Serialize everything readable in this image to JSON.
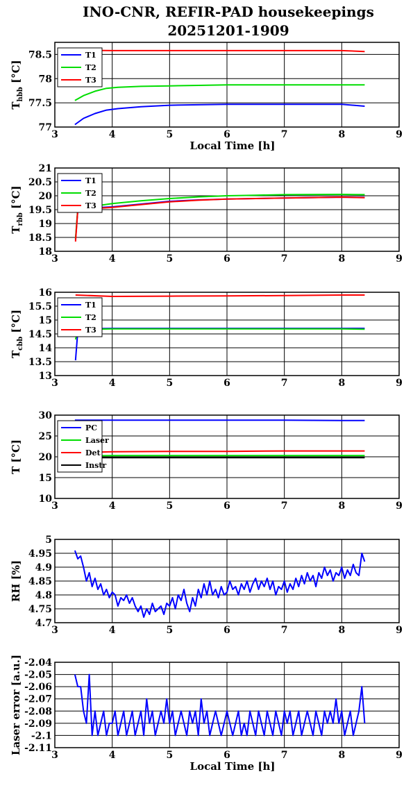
{
  "title_line1": "INO-CNR, REFIR-PAD housekeepings",
  "title_line2": "20251201-1909",
  "colors": {
    "blue": "#0000ff",
    "green": "#00dd00",
    "red": "#ff0000",
    "black": "#000000"
  },
  "chart_data": [
    {
      "type": "line",
      "ylabel_main": "T",
      "ylabel_sub": "hbb",
      "ylabel_unit": " [°C]",
      "xlabel": "Local Time [h]",
      "xlim": [
        3,
        9
      ],
      "ylim": [
        77,
        78.75
      ],
      "xticks": [
        3,
        4,
        5,
        6,
        7,
        8,
        9
      ],
      "yticks": [
        77,
        77.5,
        78,
        78.5
      ],
      "ytick_labels": [
        "77",
        "77.5",
        "78",
        "78.5"
      ],
      "legend": "top-left",
      "series": [
        {
          "name": "T1",
          "color": "blue",
          "x": [
            3.35,
            3.5,
            3.7,
            3.9,
            4.1,
            4.5,
            5.0,
            5.5,
            6.0,
            7.0,
            8.0,
            8.4
          ],
          "y": [
            77.05,
            77.18,
            77.28,
            77.35,
            77.38,
            77.42,
            77.45,
            77.46,
            77.47,
            77.47,
            77.47,
            77.43
          ]
        },
        {
          "name": "T2",
          "color": "green",
          "x": [
            3.35,
            3.5,
            3.7,
            3.9,
            4.1,
            4.5,
            5.0,
            5.5,
            6.0,
            7.0,
            8.0,
            8.4
          ],
          "y": [
            77.55,
            77.65,
            77.74,
            77.8,
            77.82,
            77.84,
            77.85,
            77.86,
            77.87,
            77.87,
            77.87,
            77.87
          ]
        },
        {
          "name": "T3",
          "color": "red",
          "x": [
            3.35,
            4.0,
            5.0,
            6.0,
            7.0,
            8.0,
            8.4
          ],
          "y": [
            78.59,
            78.58,
            78.58,
            78.58,
            78.58,
            78.58,
            78.56
          ]
        }
      ]
    },
    {
      "type": "line",
      "ylabel_main": "T",
      "ylabel_sub": "rbb",
      "ylabel_unit": " [°C]",
      "xlabel": "",
      "xlim": [
        3,
        9
      ],
      "ylim": [
        18,
        21
      ],
      "xticks": [
        3,
        4,
        5,
        6,
        7,
        8,
        9
      ],
      "yticks": [
        18,
        18.5,
        19,
        19.5,
        20,
        20.5,
        21
      ],
      "ytick_labels": [
        "18",
        "18.5",
        "19",
        "19.5",
        "20",
        "20.5",
        "21"
      ],
      "legend": "top-left",
      "series": [
        {
          "name": "T1",
          "color": "blue",
          "x": [
            3.36,
            3.4,
            3.5,
            4.0,
            4.5,
            5.0,
            5.5,
            6.0,
            6.5,
            7.0,
            8.0,
            8.4
          ],
          "y": [
            18.4,
            19.5,
            19.55,
            19.6,
            19.7,
            19.8,
            19.85,
            19.88,
            19.9,
            19.92,
            19.95,
            19.94
          ]
        },
        {
          "name": "T2",
          "color": "green",
          "x": [
            3.36,
            3.4,
            3.5,
            4.0,
            4.5,
            5.0,
            5.5,
            6.0,
            6.5,
            7.0,
            8.0,
            8.4
          ],
          "y": [
            18.45,
            19.55,
            19.57,
            19.72,
            19.82,
            19.9,
            19.96,
            20.0,
            20.02,
            20.04,
            20.05,
            20.04
          ]
        },
        {
          "name": "T3",
          "color": "red",
          "x": [
            3.36,
            3.4,
            3.5,
            4.0,
            4.5,
            5.0,
            5.5,
            6.0,
            6.5,
            7.0,
            8.0,
            8.4
          ],
          "y": [
            18.35,
            19.5,
            19.52,
            19.58,
            19.68,
            19.78,
            19.84,
            19.88,
            19.9,
            19.92,
            19.95,
            19.93
          ]
        }
      ]
    },
    {
      "type": "line",
      "ylabel_main": "T",
      "ylabel_sub": "cbb",
      "ylabel_unit": " [°C]",
      "xlabel": "",
      "xlim": [
        3,
        9
      ],
      "ylim": [
        13,
        16
      ],
      "xticks": [
        3,
        4,
        5,
        6,
        7,
        8,
        9
      ],
      "yticks": [
        13,
        13.5,
        14,
        14.5,
        15,
        15.5,
        16
      ],
      "ytick_labels": [
        "13",
        "13.5",
        "14",
        "14.5",
        "15",
        "15.5",
        "16"
      ],
      "legend": "top-left",
      "series": [
        {
          "name": "T1",
          "color": "blue",
          "x": [
            3.36,
            3.4,
            3.5,
            4.0,
            5.0,
            6.0,
            7.0,
            8.0,
            8.4
          ],
          "y": [
            13.55,
            14.6,
            14.68,
            14.7,
            14.7,
            14.7,
            14.7,
            14.7,
            14.7
          ]
        },
        {
          "name": "T2",
          "color": "green",
          "x": [
            3.36,
            3.4,
            3.5,
            4.0,
            5.0,
            6.0,
            7.0,
            8.0,
            8.4
          ],
          "y": [
            14.3,
            14.62,
            14.66,
            14.68,
            14.68,
            14.68,
            14.68,
            14.68,
            14.67
          ]
        },
        {
          "name": "T3",
          "color": "red",
          "x": [
            3.36,
            4.0,
            5.0,
            6.0,
            7.0,
            8.0,
            8.4
          ],
          "y": [
            15.9,
            15.85,
            15.86,
            15.87,
            15.88,
            15.9,
            15.9
          ]
        }
      ]
    },
    {
      "type": "line",
      "ylabel_main": "T",
      "ylabel_sub": "",
      "ylabel_unit": " [°C]",
      "xlabel": "",
      "xlim": [
        3,
        9
      ],
      "ylim": [
        10,
        30
      ],
      "xticks": [
        3,
        4,
        5,
        6,
        7,
        8,
        9
      ],
      "yticks": [
        10,
        15,
        20,
        25,
        30
      ],
      "ytick_labels": [
        "10",
        "15",
        "20",
        "25",
        "30"
      ],
      "legend": "top-left",
      "series": [
        {
          "name": "PC",
          "color": "blue",
          "x": [
            3.35,
            4.0,
            5.0,
            6.0,
            7.0,
            8.0,
            8.4
          ],
          "y": [
            28.8,
            28.8,
            28.8,
            28.8,
            28.8,
            28.7,
            28.7
          ]
        },
        {
          "name": "Laser",
          "color": "green",
          "x": [
            3.35,
            4.0,
            5.0,
            6.0,
            7.0,
            8.0,
            8.4
          ],
          "y": [
            20.2,
            20.3,
            20.3,
            20.3,
            20.3,
            20.3,
            20.3
          ]
        },
        {
          "name": "Det",
          "color": "red",
          "x": [
            3.35,
            4.0,
            5.0,
            6.0,
            7.0,
            8.0,
            8.4
          ],
          "y": [
            21.0,
            21.2,
            21.3,
            21.3,
            21.4,
            21.4,
            21.4
          ]
        },
        {
          "name": "Instr",
          "color": "black",
          "x": [
            3.35,
            4.0,
            5.0,
            6.0,
            7.0,
            8.0,
            8.4
          ],
          "y": [
            19.8,
            19.8,
            19.8,
            19.8,
            19.8,
            19.8,
            19.8
          ]
        }
      ]
    },
    {
      "type": "line",
      "ylabel_main": "RH [%]",
      "ylabel_sub": "",
      "ylabel_unit": "",
      "xlabel": "",
      "xlim": [
        3,
        9
      ],
      "ylim": [
        4.7,
        5.0
      ],
      "xticks": [
        3,
        4,
        5,
        6,
        7,
        8,
        9
      ],
      "yticks": [
        4.7,
        4.75,
        4.8,
        4.85,
        4.9,
        4.95,
        5.0
      ],
      "ytick_labels": [
        "4.7",
        "4.75",
        "4.8",
        "4.85",
        "4.9",
        "4.95",
        "5"
      ],
      "legend": "none",
      "series": [
        {
          "name": "",
          "color": "blue",
          "x": [
            3.35,
            3.4,
            3.45,
            3.5,
            3.55,
            3.6,
            3.65,
            3.7,
            3.75,
            3.8,
            3.85,
            3.9,
            3.95,
            4.0,
            4.05,
            4.1,
            4.15,
            4.2,
            4.25,
            4.3,
            4.35,
            4.4,
            4.45,
            4.5,
            4.55,
            4.6,
            4.65,
            4.7,
            4.75,
            4.8,
            4.85,
            4.9,
            4.95,
            5.0,
            5.05,
            5.1,
            5.15,
            5.2,
            5.25,
            5.3,
            5.35,
            5.4,
            5.45,
            5.5,
            5.55,
            5.6,
            5.65,
            5.7,
            5.75,
            5.8,
            5.85,
            5.9,
            5.95,
            6.0,
            6.05,
            6.1,
            6.15,
            6.2,
            6.25,
            6.3,
            6.35,
            6.4,
            6.45,
            6.5,
            6.55,
            6.6,
            6.65,
            6.7,
            6.75,
            6.8,
            6.85,
            6.9,
            6.95,
            7.0,
            7.05,
            7.1,
            7.15,
            7.2,
            7.25,
            7.3,
            7.35,
            7.4,
            7.45,
            7.5,
            7.55,
            7.6,
            7.65,
            7.7,
            7.75,
            7.8,
            7.85,
            7.9,
            7.95,
            8.0,
            8.05,
            8.1,
            8.15,
            8.2,
            8.25,
            8.3,
            8.35,
            8.4
          ],
          "y": [
            4.96,
            4.93,
            4.94,
            4.9,
            4.85,
            4.88,
            4.83,
            4.86,
            4.82,
            4.84,
            4.8,
            4.82,
            4.79,
            4.81,
            4.8,
            4.76,
            4.79,
            4.78,
            4.8,
            4.77,
            4.79,
            4.76,
            4.74,
            4.76,
            4.72,
            4.75,
            4.73,
            4.77,
            4.74,
            4.75,
            4.76,
            4.73,
            4.77,
            4.76,
            4.79,
            4.75,
            4.8,
            4.78,
            4.82,
            4.77,
            4.74,
            4.79,
            4.76,
            4.82,
            4.79,
            4.84,
            4.8,
            4.85,
            4.8,
            4.82,
            4.79,
            4.83,
            4.8,
            4.81,
            4.85,
            4.82,
            4.83,
            4.8,
            4.84,
            4.82,
            4.85,
            4.81,
            4.84,
            4.86,
            4.82,
            4.85,
            4.83,
            4.86,
            4.82,
            4.85,
            4.8,
            4.83,
            4.82,
            4.85,
            4.81,
            4.84,
            4.82,
            4.86,
            4.83,
            4.87,
            4.84,
            4.88,
            4.85,
            4.87,
            4.83,
            4.88,
            4.86,
            4.9,
            4.87,
            4.89,
            4.85,
            4.88,
            4.87,
            4.9,
            4.86,
            4.89,
            4.87,
            4.91,
            4.88,
            4.87,
            4.95,
            4.92
          ]
        }
      ]
    },
    {
      "type": "line",
      "ylabel_main": "Laser error [a.u.]",
      "ylabel_sub": "",
      "ylabel_unit": "",
      "xlabel": "Local Time [h]",
      "xlim": [
        3,
        9
      ],
      "ylim": [
        -2.11,
        -2.04
      ],
      "xticks": [
        3,
        4,
        5,
        6,
        7,
        8,
        9
      ],
      "yticks": [
        -2.11,
        -2.1,
        -2.09,
        -2.08,
        -2.07,
        -2.06,
        -2.05,
        -2.04
      ],
      "ytick_labels": [
        "-2.11",
        "-2.1",
        "-2.09",
        "-2.08",
        "-2.07",
        "-2.06",
        "-2.05",
        "-2.04"
      ],
      "legend": "none",
      "series": [
        {
          "name": "",
          "color": "blue",
          "x": [
            3.35,
            3.4,
            3.45,
            3.5,
            3.55,
            3.6,
            3.65,
            3.7,
            3.75,
            3.8,
            3.85,
            3.9,
            3.95,
            4.0,
            4.05,
            4.1,
            4.15,
            4.2,
            4.25,
            4.3,
            4.35,
            4.4,
            4.45,
            4.5,
            4.55,
            4.6,
            4.65,
            4.7,
            4.75,
            4.8,
            4.85,
            4.9,
            4.95,
            5.0,
            5.05,
            5.1,
            5.15,
            5.2,
            5.25,
            5.3,
            5.35,
            5.4,
            5.45,
            5.5,
            5.55,
            5.6,
            5.65,
            5.7,
            5.75,
            5.8,
            5.85,
            5.9,
            5.95,
            6.0,
            6.05,
            6.1,
            6.15,
            6.2,
            6.25,
            6.3,
            6.35,
            6.4,
            6.45,
            6.5,
            6.55,
            6.6,
            6.65,
            6.7,
            6.75,
            6.8,
            6.85,
            6.9,
            6.95,
            7.0,
            7.05,
            7.1,
            7.15,
            7.2,
            7.25,
            7.3,
            7.35,
            7.4,
            7.45,
            7.5,
            7.55,
            7.6,
            7.65,
            7.7,
            7.75,
            7.8,
            7.85,
            7.9,
            7.95,
            8.0,
            8.05,
            8.1,
            8.15,
            8.2,
            8.25,
            8.3,
            8.35,
            8.4
          ],
          "y": [
            -2.05,
            -2.06,
            -2.06,
            -2.08,
            -2.09,
            -2.05,
            -2.1,
            -2.08,
            -2.1,
            -2.09,
            -2.08,
            -2.1,
            -2.09,
            -2.09,
            -2.08,
            -2.1,
            -2.09,
            -2.08,
            -2.1,
            -2.09,
            -2.08,
            -2.1,
            -2.09,
            -2.08,
            -2.1,
            -2.07,
            -2.09,
            -2.08,
            -2.1,
            -2.09,
            -2.08,
            -2.09,
            -2.07,
            -2.09,
            -2.08,
            -2.1,
            -2.09,
            -2.08,
            -2.09,
            -2.1,
            -2.08,
            -2.09,
            -2.08,
            -2.1,
            -2.07,
            -2.09,
            -2.08,
            -2.1,
            -2.09,
            -2.08,
            -2.09,
            -2.1,
            -2.09,
            -2.08,
            -2.09,
            -2.1,
            -2.09,
            -2.08,
            -2.1,
            -2.09,
            -2.1,
            -2.08,
            -2.09,
            -2.1,
            -2.08,
            -2.09,
            -2.1,
            -2.08,
            -2.09,
            -2.1,
            -2.08,
            -2.09,
            -2.1,
            -2.08,
            -2.09,
            -2.08,
            -2.1,
            -2.09,
            -2.08,
            -2.1,
            -2.09,
            -2.08,
            -2.09,
            -2.1,
            -2.08,
            -2.09,
            -2.1,
            -2.08,
            -2.09,
            -2.08,
            -2.09,
            -2.07,
            -2.09,
            -2.08,
            -2.1,
            -2.09,
            -2.08,
            -2.1,
            -2.09,
            -2.08,
            -2.06,
            -2.09
          ]
        }
      ]
    }
  ]
}
